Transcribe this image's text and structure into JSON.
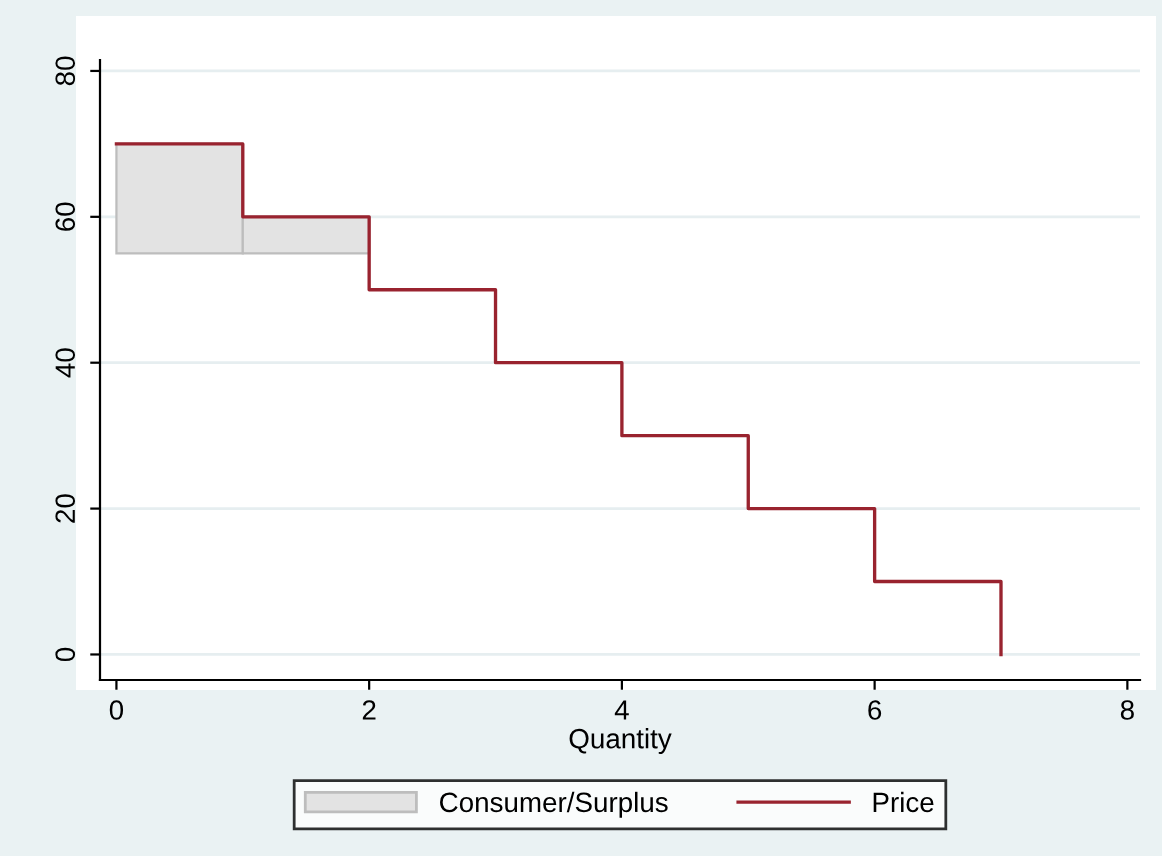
{
  "chart_data": {
    "type": "step",
    "xlabel": "Quantity",
    "series": [
      {
        "name": "Consumer/Surplus",
        "type": "bar",
        "color": "#e3e3e3",
        "x": [
          0.5,
          1.5
        ],
        "values": [
          15,
          5
        ],
        "base": [
          55,
          55
        ]
      },
      {
        "name": "Price",
        "color": "#99232f",
        "x": [
          0,
          1,
          2,
          3,
          4,
          5,
          6,
          7,
          7
        ],
        "values": [
          70,
          60,
          50,
          40,
          30,
          20,
          10,
          10,
          0
        ]
      }
    ],
    "xlim": [
      -0.13,
      8.1
    ],
    "ylim": [
      -3.5,
      81.5
    ],
    "xticks": [
      0,
      2,
      4,
      6,
      8
    ],
    "yticks": [
      0,
      20,
      40,
      60,
      80
    ],
    "grid": "y",
    "legend": "bottom"
  }
}
